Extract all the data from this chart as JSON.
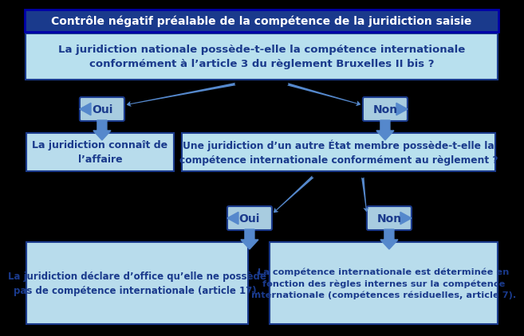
{
  "title": "Contrôle négatif préalable de la compétence de la juridiction saisie",
  "title_bg": "#1a3a8c",
  "title_text_color": "white",
  "question1": "La juridiction nationale possède-t-elle la compétence internationale\nconformément à l’article 3 du règlement Bruxelles II bis ?",
  "q1_bg": "#aadcee",
  "oui1_label": "Oui",
  "non1_label": "Non",
  "box_oui_label": "La juridiction connaît de\nl’affaire",
  "question2": "Une juridiction d’un autre État membre possède-t-elle la\ncompétence internationale conformément au règlement ?",
  "oui2_label": "Oui",
  "non2_label": "Non",
  "box_oui2_label": "La juridiction déclare d’office qu’elle ne possède\npas de compétence internationale (article 17).",
  "box_non2_label": "La compétence internationale est déterminée en\nfonction des règles internes sur la compétence\ninternationale (compétences résiduelles, article 7).",
  "light_blue_q": "#b8e0ee",
  "light_blue_box": "#b8dcec",
  "diamond_bg": "#a8cce0",
  "border_color": "#1a3a8c",
  "bg_color": "#000000",
  "arrow_color": "#5588cc",
  "title_border": "#0000aa"
}
